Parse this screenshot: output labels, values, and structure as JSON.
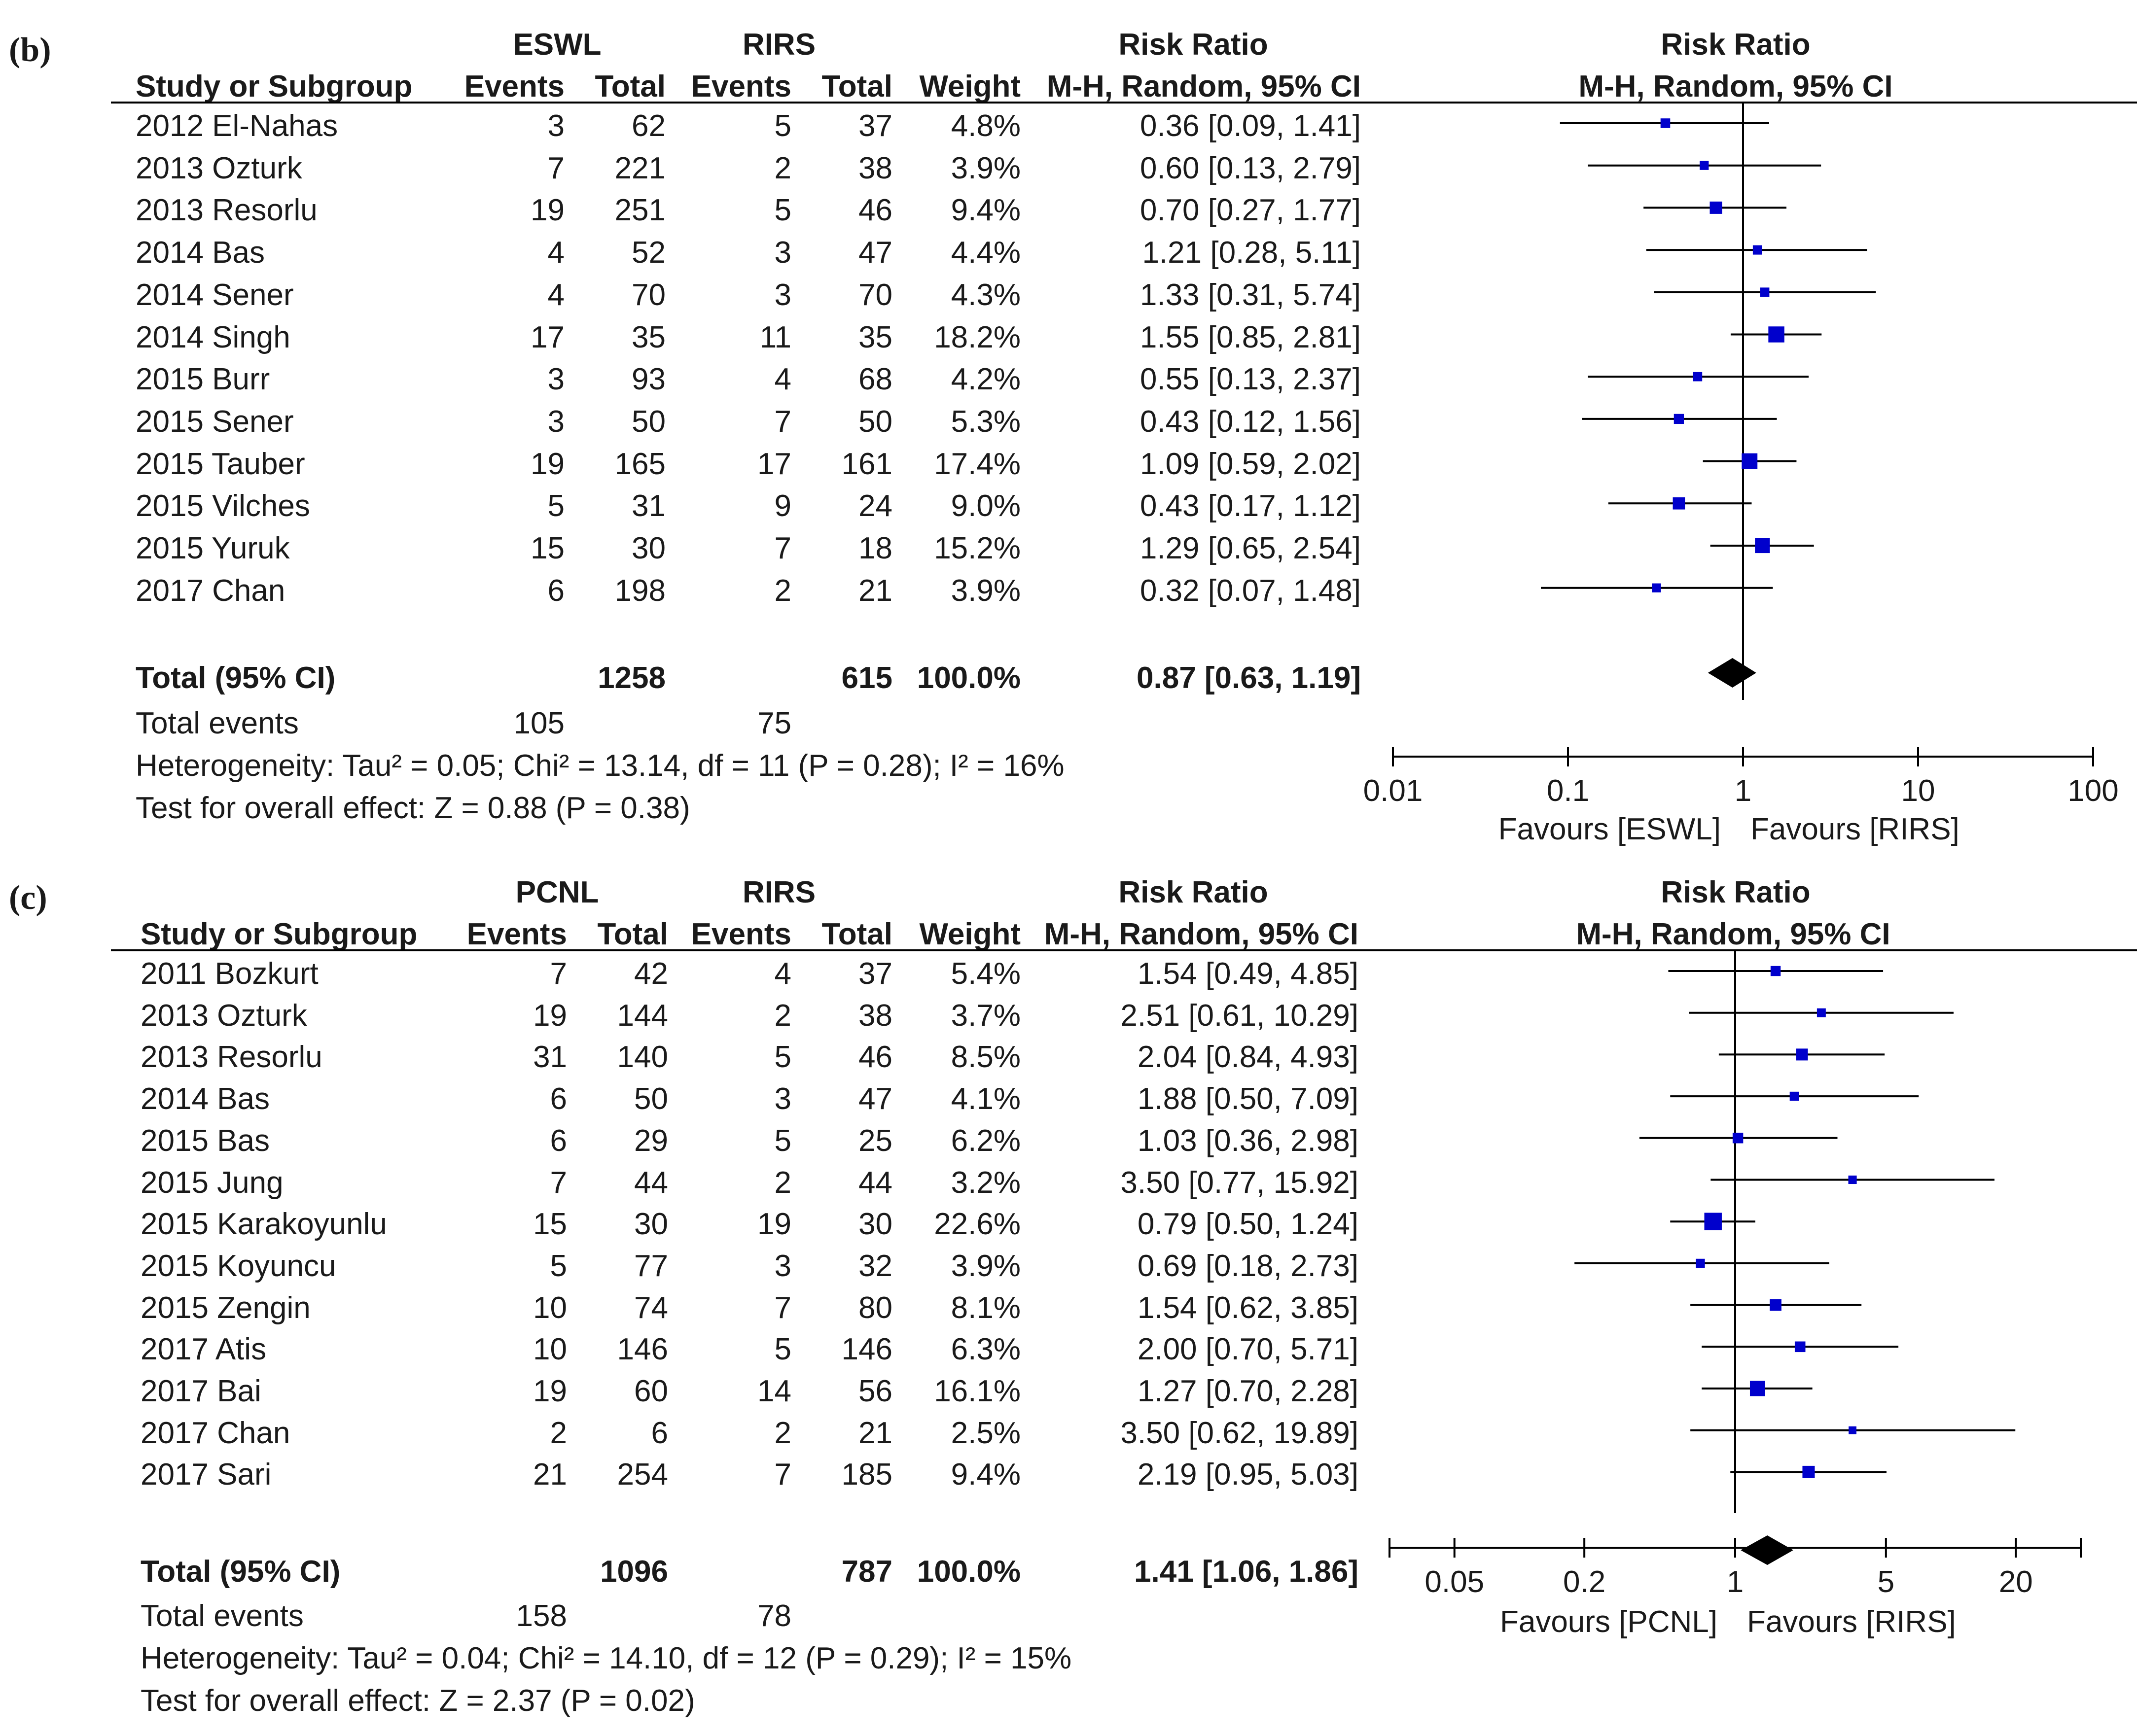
{
  "chart_data": [
    {
      "panel": "(b)",
      "type": "forest",
      "group_left": "ESWL",
      "group_right": "RIRS",
      "columns": [
        "Study or Subgroup",
        "Events",
        "Total",
        "Events",
        "Total",
        "Weight"
      ],
      "rr_header": [
        "Risk Ratio",
        "M-H, Random, 95% CI"
      ],
      "plot_header": [
        "Risk Ratio",
        "M-H, Random, 95% CI"
      ],
      "studies": [
        {
          "name": "2012 El-Nahas",
          "e1": "3",
          "t1": "62",
          "e2": "5",
          "t2": "37",
          "weight": "4.8%",
          "ci": "0.36 [0.09, 1.41]",
          "rr": 0.36,
          "lo": 0.09,
          "hi": 1.41,
          "w": 4.8
        },
        {
          "name": "2013 Ozturk",
          "e1": "7",
          "t1": "221",
          "e2": "2",
          "t2": "38",
          "weight": "3.9%",
          "ci": "0.60 [0.13, 2.79]",
          "rr": 0.6,
          "lo": 0.13,
          "hi": 2.79,
          "w": 3.9
        },
        {
          "name": "2013 Resorlu",
          "e1": "19",
          "t1": "251",
          "e2": "5",
          "t2": "46",
          "weight": "9.4%",
          "ci": "0.70 [0.27, 1.77]",
          "rr": 0.7,
          "lo": 0.27,
          "hi": 1.77,
          "w": 9.4
        },
        {
          "name": "2014 Bas",
          "e1": "4",
          "t1": "52",
          "e2": "3",
          "t2": "47",
          "weight": "4.4%",
          "ci": "1.21 [0.28, 5.11]",
          "rr": 1.21,
          "lo": 0.28,
          "hi": 5.11,
          "w": 4.4
        },
        {
          "name": "2014 Sener",
          "e1": "4",
          "t1": "70",
          "e2": "3",
          "t2": "70",
          "weight": "4.3%",
          "ci": "1.33 [0.31, 5.74]",
          "rr": 1.33,
          "lo": 0.31,
          "hi": 5.74,
          "w": 4.3
        },
        {
          "name": "2014 Singh",
          "e1": "17",
          "t1": "35",
          "e2": "11",
          "t2": "35",
          "weight": "18.2%",
          "ci": "1.55 [0.85, 2.81]",
          "rr": 1.55,
          "lo": 0.85,
          "hi": 2.81,
          "w": 18.2
        },
        {
          "name": "2015 Burr",
          "e1": "3",
          "t1": "93",
          "e2": "4",
          "t2": "68",
          "weight": "4.2%",
          "ci": "0.55 [0.13, 2.37]",
          "rr": 0.55,
          "lo": 0.13,
          "hi": 2.37,
          "w": 4.2
        },
        {
          "name": "2015 Sener",
          "e1": "3",
          "t1": "50",
          "e2": "7",
          "t2": "50",
          "weight": "5.3%",
          "ci": "0.43 [0.12, 1.56]",
          "rr": 0.43,
          "lo": 0.12,
          "hi": 1.56,
          "w": 5.3
        },
        {
          "name": "2015 Tauber",
          "e1": "19",
          "t1": "165",
          "e2": "17",
          "t2": "161",
          "weight": "17.4%",
          "ci": "1.09 [0.59, 2.02]",
          "rr": 1.09,
          "lo": 0.59,
          "hi": 2.02,
          "w": 17.4
        },
        {
          "name": "2015 Vilches",
          "e1": "5",
          "t1": "31",
          "e2": "9",
          "t2": "24",
          "weight": "9.0%",
          "ci": "0.43 [0.17, 1.12]",
          "rr": 0.43,
          "lo": 0.17,
          "hi": 1.12,
          "w": 9.0
        },
        {
          "name": "2015 Yuruk",
          "e1": "15",
          "t1": "30",
          "e2": "7",
          "t2": "18",
          "weight": "15.2%",
          "ci": "1.29 [0.65, 2.54]",
          "rr": 1.29,
          "lo": 0.65,
          "hi": 2.54,
          "w": 15.2
        },
        {
          "name": "2017 Chan",
          "e1": "6",
          "t1": "198",
          "e2": "2",
          "t2": "21",
          "weight": "3.9%",
          "ci": "0.32 [0.07, 1.48]",
          "rr": 0.32,
          "lo": 0.07,
          "hi": 1.48,
          "w": 3.9
        }
      ],
      "total": {
        "label": "Total (95% CI)",
        "t1": "1258",
        "t2": "615",
        "weight": "100.0%",
        "ci": "0.87 [0.63, 1.19]",
        "rr": 0.87,
        "lo": 0.63,
        "hi": 1.19
      },
      "total_events": {
        "label": "Total events",
        "e1": "105",
        "e2": "75"
      },
      "heterogeneity": "Heterogeneity: Tau² = 0.05; Chi² = 13.14, df = 11 (P = 0.28); I² = 16%",
      "overall_effect": "Test for overall effect: Z = 0.88 (P = 0.38)",
      "axis": {
        "scale": "log",
        "min": 0.01,
        "max": 100,
        "ticks": [
          0.01,
          0.1,
          1,
          10,
          100
        ],
        "tick_labels": [
          "0.01",
          "0.1",
          "1",
          "10",
          "100"
        ]
      },
      "favours_left": "Favours [ESWL]",
      "favours_right": "Favours [RIRS]"
    },
    {
      "panel": "(c)",
      "type": "forest",
      "group_left": "PCNL",
      "group_right": "RIRS",
      "columns": [
        "Study or Subgroup",
        "Events",
        "Total",
        "Events",
        "Total",
        "Weight"
      ],
      "rr_header": [
        "Risk Ratio",
        "M-H, Random, 95% CI"
      ],
      "plot_header": [
        "Risk Ratio",
        "M-H, Random, 95% CI"
      ],
      "studies": [
        {
          "name": "2011 Bozkurt",
          "e1": "7",
          "t1": "42",
          "e2": "4",
          "t2": "37",
          "weight": "5.4%",
          "ci": "1.54 [0.49, 4.85]",
          "rr": 1.54,
          "lo": 0.49,
          "hi": 4.85,
          "w": 5.4
        },
        {
          "name": "2013 Ozturk",
          "e1": "19",
          "t1": "144",
          "e2": "2",
          "t2": "38",
          "weight": "3.7%",
          "ci": "2.51 [0.61, 10.29]",
          "rr": 2.51,
          "lo": 0.61,
          "hi": 10.29,
          "w": 3.7
        },
        {
          "name": "2013 Resorlu",
          "e1": "31",
          "t1": "140",
          "e2": "5",
          "t2": "46",
          "weight": "8.5%",
          "ci": "2.04 [0.84, 4.93]",
          "rr": 2.04,
          "lo": 0.84,
          "hi": 4.93,
          "w": 8.5
        },
        {
          "name": "2014 Bas",
          "e1": "6",
          "t1": "50",
          "e2": "3",
          "t2": "47",
          "weight": "4.1%",
          "ci": "1.88 [0.50, 7.09]",
          "rr": 1.88,
          "lo": 0.5,
          "hi": 7.09,
          "w": 4.1
        },
        {
          "name": "2015 Bas",
          "e1": "6",
          "t1": "29",
          "e2": "5",
          "t2": "25",
          "weight": "6.2%",
          "ci": "1.03 [0.36, 2.98]",
          "rr": 1.03,
          "lo": 0.36,
          "hi": 2.98,
          "w": 6.2
        },
        {
          "name": "2015 Jung",
          "e1": "7",
          "t1": "44",
          "e2": "2",
          "t2": "44",
          "weight": "3.2%",
          "ci": "3.50 [0.77, 15.92]",
          "rr": 3.5,
          "lo": 0.77,
          "hi": 15.92,
          "w": 3.2
        },
        {
          "name": "2015 Karakoyunlu",
          "e1": "15",
          "t1": "30",
          "e2": "19",
          "t2": "30",
          "weight": "22.6%",
          "ci": "0.79 [0.50, 1.24]",
          "rr": 0.79,
          "lo": 0.5,
          "hi": 1.24,
          "w": 22.6
        },
        {
          "name": "2015 Koyuncu",
          "e1": "5",
          "t1": "77",
          "e2": "3",
          "t2": "32",
          "weight": "3.9%",
          "ci": "0.69 [0.18, 2.73]",
          "rr": 0.69,
          "lo": 0.18,
          "hi": 2.73,
          "w": 3.9
        },
        {
          "name": "2015 Zengin",
          "e1": "10",
          "t1": "74",
          "e2": "7",
          "t2": "80",
          "weight": "8.1%",
          "ci": "1.54 [0.62, 3.85]",
          "rr": 1.54,
          "lo": 0.62,
          "hi": 3.85,
          "w": 8.1
        },
        {
          "name": "2017 Atis",
          "e1": "10",
          "t1": "146",
          "e2": "5",
          "t2": "146",
          "weight": "6.3%",
          "ci": "2.00 [0.70, 5.71]",
          "rr": 2.0,
          "lo": 0.7,
          "hi": 5.71,
          "w": 6.3
        },
        {
          "name": "2017 Bai",
          "e1": "19",
          "t1": "60",
          "e2": "14",
          "t2": "56",
          "weight": "16.1%",
          "ci": "1.27 [0.70, 2.28]",
          "rr": 1.27,
          "lo": 0.7,
          "hi": 2.28,
          "w": 16.1
        },
        {
          "name": "2017 Chan",
          "e1": "2",
          "t1": "6",
          "e2": "2",
          "t2": "21",
          "weight": "2.5%",
          "ci": "3.50 [0.62, 19.89]",
          "rr": 3.5,
          "lo": 0.62,
          "hi": 19.89,
          "w": 2.5
        },
        {
          "name": "2017 Sari",
          "e1": "21",
          "t1": "254",
          "e2": "7",
          "t2": "185",
          "weight": "9.4%",
          "ci": "2.19 [0.95, 5.03]",
          "rr": 2.19,
          "lo": 0.95,
          "hi": 5.03,
          "w": 9.4
        }
      ],
      "total": {
        "label": "Total (95% CI)",
        "t1": "1096",
        "t2": "787",
        "weight": "100.0%",
        "ci": "1.41 [1.06, 1.86]",
        "rr": 1.41,
        "lo": 1.06,
        "hi": 1.86
      },
      "total_events": {
        "label": "Total events",
        "e1": "158",
        "e2": "78"
      },
      "heterogeneity": "Heterogeneity: Tau² = 0.04; Chi² = 14.10, df = 12 (P = 0.29); I² = 15%",
      "overall_effect": "Test for overall effect: Z = 2.37 (P = 0.02)",
      "axis": {
        "scale": "log",
        "min": 0.025,
        "max": 40,
        "ticks": [
          0.05,
          0.2,
          1,
          5,
          20
        ],
        "tick_labels": [
          "0.05",
          "0.2",
          "1",
          "5",
          "20"
        ]
      },
      "favours_left": "Favours [PCNL]",
      "favours_right": "Favours [RIRS]"
    }
  ],
  "colors": {
    "marker": "#0000cc",
    "diamond": "#000000",
    "line": "#000000",
    "text": "#1a1a1a"
  }
}
